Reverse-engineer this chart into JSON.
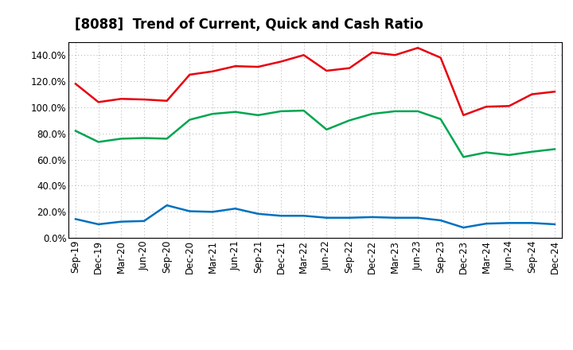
{
  "title": "[8088]  Trend of Current, Quick and Cash Ratio",
  "x_labels": [
    "Sep-19",
    "Dec-19",
    "Mar-20",
    "Jun-20",
    "Sep-20",
    "Dec-20",
    "Mar-21",
    "Jun-21",
    "Sep-21",
    "Dec-21",
    "Mar-22",
    "Jun-22",
    "Sep-22",
    "Dec-22",
    "Mar-23",
    "Jun-23",
    "Sep-23",
    "Dec-23",
    "Mar-24",
    "Jun-24",
    "Sep-24",
    "Dec-24"
  ],
  "current_ratio": [
    118.0,
    104.0,
    106.5,
    106.0,
    105.0,
    125.0,
    127.5,
    131.5,
    131.0,
    135.0,
    140.0,
    128.0,
    130.0,
    142.0,
    140.0,
    145.5,
    138.0,
    94.0,
    100.5,
    101.0,
    110.0,
    112.0
  ],
  "quick_ratio": [
    82.0,
    73.5,
    76.0,
    76.5,
    76.0,
    90.5,
    95.0,
    96.5,
    94.0,
    97.0,
    97.5,
    83.0,
    90.0,
    95.0,
    97.0,
    97.0,
    91.0,
    62.0,
    65.5,
    63.5,
    66.0,
    68.0
  ],
  "cash_ratio": [
    14.5,
    10.5,
    12.5,
    13.0,
    25.0,
    20.5,
    20.0,
    22.5,
    18.5,
    17.0,
    17.0,
    15.5,
    15.5,
    16.0,
    15.5,
    15.5,
    13.5,
    8.0,
    11.0,
    11.5,
    11.5,
    10.5
  ],
  "current_color": "#e8000d",
  "quick_color": "#00a550",
  "cash_color": "#0070c0",
  "ylim": [
    0,
    150
  ],
  "yticks": [
    0,
    20,
    40,
    60,
    80,
    100,
    120,
    140
  ],
  "bg_color": "#ffffff",
  "plot_bg_color": "#ffffff",
  "grid_color": "#999999",
  "title_fontsize": 12,
  "legend_fontsize": 10,
  "tick_fontsize": 8.5,
  "line_width": 1.8
}
